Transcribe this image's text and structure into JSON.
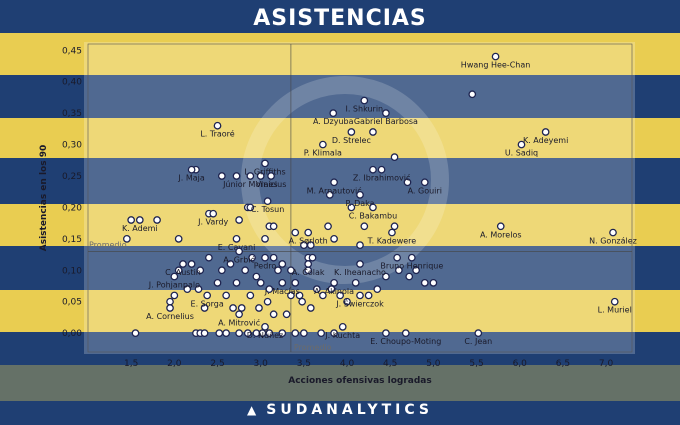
{
  "title": "ASISTENCIAS",
  "brand": "SUDANALYTICS",
  "colors": {
    "blue": "#1f3f73",
    "yellow": "#e9cd51",
    "point_stroke": "#1e2450",
    "point_fill": "#ffffff"
  },
  "chart_data": {
    "type": "scatter",
    "xlabel": "Acciones ofensivas logradas",
    "ylabel": "Asistencias en los 90",
    "xlim": [
      1.0,
      7.3
    ],
    "ylim": [
      -0.03,
      0.46
    ],
    "xticks": [
      1.5,
      2.0,
      2.5,
      3.0,
      3.5,
      4.0,
      4.5,
      5.0,
      5.5,
      6.0,
      6.5,
      7.0
    ],
    "xtick_labels": [
      "1,5",
      "2,0",
      "2,5",
      "3,0",
      "3,5",
      "4,0",
      "4,5",
      "5,0",
      "5,5",
      "6,0",
      "6,5",
      "7,0"
    ],
    "yticks": [
      0.0,
      0.05,
      0.1,
      0.15,
      0.2,
      0.25,
      0.3,
      0.35,
      0.4,
      0.45
    ],
    "ytick_labels": [
      "0,00",
      "0,05",
      "0,10",
      "0,15",
      "0,20",
      "0,25",
      "0,30",
      "0,35",
      "0,40",
      "0,45"
    ],
    "averages": {
      "x": 3.35,
      "y": 0.13,
      "label": "Promedio"
    },
    "grid": false,
    "labeled_points": [
      {
        "name": "Hwang Hee-Chan",
        "x": 5.72,
        "y": 0.44
      },
      {
        "name": "I. Shkurin",
        "x": 4.2,
        "y": 0.37
      },
      {
        "name": "A. Dzyuba",
        "x": 3.84,
        "y": 0.35
      },
      {
        "name": "Gabriel Barbosa",
        "x": 4.45,
        "y": 0.35
      },
      {
        "name": "K. Adeyemi",
        "x": 6.3,
        "y": 0.32
      },
      {
        "name": "L. Traoré",
        "x": 2.5,
        "y": 0.33
      },
      {
        "name": "D. Strelec",
        "x": 4.05,
        "y": 0.32
      },
      {
        "name": "P. Klimala",
        "x": 3.72,
        "y": 0.3
      },
      {
        "name": "U. Sadiq",
        "x": 6.02,
        "y": 0.3
      },
      {
        "name": "L. Griffiths",
        "x": 3.05,
        "y": 0.27
      },
      {
        "name": "J. Maja",
        "x": 2.2,
        "y": 0.26
      },
      {
        "name": "Vinícius",
        "x": 3.12,
        "y": 0.25
      },
      {
        "name": "Z. Ibrahimović",
        "x": 4.4,
        "y": 0.26
      },
      {
        "name": "Júnior Moraes",
        "x": 2.88,
        "y": 0.25
      },
      {
        "name": "M. Arnautović",
        "x": 3.85,
        "y": 0.24
      },
      {
        "name": "A. Gouiri",
        "x": 4.9,
        "y": 0.24
      },
      {
        "name": "P. Daka",
        "x": 4.15,
        "y": 0.22
      },
      {
        "name": "C. Tosun",
        "x": 3.08,
        "y": 0.21
      },
      {
        "name": "J. Vardy",
        "x": 2.45,
        "y": 0.19
      },
      {
        "name": "C. Bakambu",
        "x": 4.3,
        "y": 0.2
      },
      {
        "name": "K. Ademi",
        "x": 1.6,
        "y": 0.18
      },
      {
        "name": "E. Cavani",
        "x": 2.72,
        "y": 0.15
      },
      {
        "name": "A. Sørloth",
        "x": 3.55,
        "y": 0.16
      },
      {
        "name": "T. Kadewere",
        "x": 4.52,
        "y": 0.16
      },
      {
        "name": "A. Morelos",
        "x": 5.78,
        "y": 0.17
      },
      {
        "name": "N. González",
        "x": 7.08,
        "y": 0.16
      },
      {
        "name": "A. Grbić",
        "x": 2.75,
        "y": 0.13
      },
      {
        "name": "C. Austin",
        "x": 2.1,
        "y": 0.11
      },
      {
        "name": "Pedro",
        "x": 3.05,
        "y": 0.12
      },
      {
        "name": "Bruno Henrique",
        "x": 4.75,
        "y": 0.12
      },
      {
        "name": "K. Iheanacho",
        "x": 4.15,
        "y": 0.11
      },
      {
        "name": "A. Čolak",
        "x": 3.55,
        "y": 0.11
      },
      {
        "name": "J. Pohjanpalo",
        "x": 2.0,
        "y": 0.09
      },
      {
        "name": "J. Macías",
        "x": 3.25,
        "y": 0.08
      },
      {
        "name": "A. Akinola",
        "x": 3.85,
        "y": 0.08
      },
      {
        "name": "E. Sorga",
        "x": 2.38,
        "y": 0.06
      },
      {
        "name": "J. Świerczok",
        "x": 4.15,
        "y": 0.06
      },
      {
        "name": "A. Cornelius",
        "x": 1.95,
        "y": 0.04
      },
      {
        "name": "A. Mitrović",
        "x": 2.75,
        "y": 0.03
      },
      {
        "name": "D. Núñez",
        "x": 3.05,
        "y": 0.01
      },
      {
        "name": "J. Kuchta",
        "x": 3.95,
        "y": 0.01
      },
      {
        "name": "E. Choupo-Moting",
        "x": 4.68,
        "y": 0.0
      },
      {
        "name": "C. Jean",
        "x": 5.52,
        "y": 0.0
      },
      {
        "name": "L. Muriel",
        "x": 7.1,
        "y": 0.05
      }
    ],
    "other_points": [
      {
        "x": 1.45,
        "y": 0.15
      },
      {
        "x": 1.5,
        "y": 0.18
      },
      {
        "x": 1.55,
        "y": 0.0
      },
      {
        "x": 1.8,
        "y": 0.18
      },
      {
        "x": 2.05,
        "y": 0.15
      },
      {
        "x": 2.25,
        "y": 0.26
      },
      {
        "x": 2.4,
        "y": 0.19
      },
      {
        "x": 2.55,
        "y": 0.25
      },
      {
        "x": 2.72,
        "y": 0.25
      },
      {
        "x": 2.85,
        "y": 0.2
      },
      {
        "x": 2.88,
        "y": 0.2
      },
      {
        "x": 2.75,
        "y": 0.18
      },
      {
        "x": 3.0,
        "y": 0.25
      },
      {
        "x": 3.1,
        "y": 0.17
      },
      {
        "x": 3.15,
        "y": 0.17
      },
      {
        "x": 3.05,
        "y": 0.15
      },
      {
        "x": 3.15,
        "y": 0.12
      },
      {
        "x": 3.4,
        "y": 0.16
      },
      {
        "x": 3.5,
        "y": 0.14
      },
      {
        "x": 3.58,
        "y": 0.14
      },
      {
        "x": 3.55,
        "y": 0.12
      },
      {
        "x": 3.6,
        "y": 0.12
      },
      {
        "x": 3.8,
        "y": 0.22
      },
      {
        "x": 3.78,
        "y": 0.17
      },
      {
        "x": 3.85,
        "y": 0.15
      },
      {
        "x": 4.05,
        "y": 0.2
      },
      {
        "x": 4.2,
        "y": 0.17
      },
      {
        "x": 4.55,
        "y": 0.17
      },
      {
        "x": 4.58,
        "y": 0.12
      },
      {
        "x": 4.15,
        "y": 0.14
      },
      {
        "x": 4.55,
        "y": 0.28
      },
      {
        "x": 4.3,
        "y": 0.32
      },
      {
        "x": 4.3,
        "y": 0.26
      },
      {
        "x": 4.7,
        "y": 0.24
      },
      {
        "x": 5.45,
        "y": 0.38
      },
      {
        "x": 2.05,
        "y": 0.1
      },
      {
        "x": 2.2,
        "y": 0.11
      },
      {
        "x": 2.3,
        "y": 0.1
      },
      {
        "x": 2.4,
        "y": 0.12
      },
      {
        "x": 2.55,
        "y": 0.1
      },
      {
        "x": 2.65,
        "y": 0.11
      },
      {
        "x": 2.72,
        "y": 0.08
      },
      {
        "x": 2.82,
        "y": 0.1
      },
      {
        "x": 2.9,
        "y": 0.12
      },
      {
        "x": 2.95,
        "y": 0.09
      },
      {
        "x": 3.0,
        "y": 0.08
      },
      {
        "x": 3.1,
        "y": 0.07
      },
      {
        "x": 3.2,
        "y": 0.1
      },
      {
        "x": 3.25,
        "y": 0.11
      },
      {
        "x": 3.35,
        "y": 0.1
      },
      {
        "x": 3.4,
        "y": 0.08
      },
      {
        "x": 3.45,
        "y": 0.06
      },
      {
        "x": 3.55,
        "y": 0.1
      },
      {
        "x": 3.65,
        "y": 0.07
      },
      {
        "x": 3.72,
        "y": 0.06
      },
      {
        "x": 3.82,
        "y": 0.07
      },
      {
        "x": 3.92,
        "y": 0.06
      },
      {
        "x": 4.0,
        "y": 0.05
      },
      {
        "x": 4.1,
        "y": 0.08
      },
      {
        "x": 4.25,
        "y": 0.06
      },
      {
        "x": 4.35,
        "y": 0.07
      },
      {
        "x": 4.45,
        "y": 0.09
      },
      {
        "x": 4.6,
        "y": 0.1
      },
      {
        "x": 4.72,
        "y": 0.09
      },
      {
        "x": 4.8,
        "y": 0.1
      },
      {
        "x": 4.9,
        "y": 0.08
      },
      {
        "x": 5.0,
        "y": 0.08
      },
      {
        "x": 2.0,
        "y": 0.06
      },
      {
        "x": 2.15,
        "y": 0.07
      },
      {
        "x": 2.28,
        "y": 0.07
      },
      {
        "x": 2.35,
        "y": 0.04
      },
      {
        "x": 2.5,
        "y": 0.08
      },
      {
        "x": 2.6,
        "y": 0.06
      },
      {
        "x": 2.68,
        "y": 0.04
      },
      {
        "x": 2.78,
        "y": 0.04
      },
      {
        "x": 2.88,
        "y": 0.06
      },
      {
        "x": 2.98,
        "y": 0.04
      },
      {
        "x": 3.08,
        "y": 0.05
      },
      {
        "x": 3.15,
        "y": 0.03
      },
      {
        "x": 3.3,
        "y": 0.03
      },
      {
        "x": 3.35,
        "y": 0.06
      },
      {
        "x": 3.48,
        "y": 0.05
      },
      {
        "x": 3.58,
        "y": 0.04
      },
      {
        "x": 1.95,
        "y": 0.05
      },
      {
        "x": 2.25,
        "y": 0.0
      },
      {
        "x": 2.3,
        "y": 0.0
      },
      {
        "x": 2.35,
        "y": 0.0
      },
      {
        "x": 2.52,
        "y": 0.0
      },
      {
        "x": 2.6,
        "y": 0.0
      },
      {
        "x": 2.75,
        "y": 0.0
      },
      {
        "x": 2.85,
        "y": 0.0
      },
      {
        "x": 2.95,
        "y": 0.0
      },
      {
        "x": 3.02,
        "y": 0.0
      },
      {
        "x": 3.1,
        "y": 0.0
      },
      {
        "x": 3.25,
        "y": 0.0
      },
      {
        "x": 3.4,
        "y": 0.0
      },
      {
        "x": 3.5,
        "y": 0.0
      },
      {
        "x": 3.7,
        "y": 0.0
      },
      {
        "x": 3.85,
        "y": 0.0
      },
      {
        "x": 4.45,
        "y": 0.0
      }
    ]
  }
}
